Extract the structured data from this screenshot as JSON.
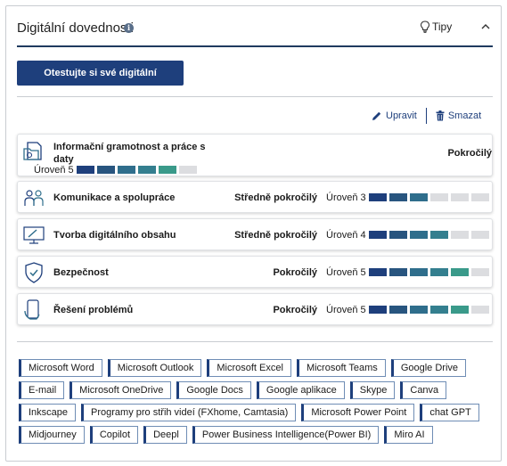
{
  "header": {
    "title": "Digitální dovednosti",
    "tips_label": "Tipy"
  },
  "test_button_label": "Otestujte si své digitální dovednosti",
  "actions": {
    "edit_label": "Upravit",
    "delete_label": "Smazat"
  },
  "bar_colors": [
    "#1e3f7c",
    "#28557f",
    "#2f6e8c",
    "#347f8f",
    "#3a9a8a",
    "#dcdde0"
  ],
  "skills": [
    {
      "name_line1": "Informační gramotnost a práce s",
      "name_line2": "daty",
      "level_text": "Pokročilý",
      "level_label": "Úroveň 5",
      "level": 5,
      "max": 6
    },
    {
      "name": "Komunikace a spolupráce",
      "level_text": "Středně pokročilý",
      "level_label": "Úroveň 3",
      "level": 3,
      "max": 6
    },
    {
      "name": "Tvorba digitálního obsahu",
      "level_text": "Středně pokročilý",
      "level_label": "Úroveň 4",
      "level": 4,
      "max": 6
    },
    {
      "name": "Bezpečnost",
      "level_text": "Pokročilý",
      "level_label": "Úroveň 5",
      "level": 5,
      "max": 6
    },
    {
      "name": "Řešení problémů",
      "level_text": "Pokročilý",
      "level_label": "Úroveň 5",
      "level": 5,
      "max": 6
    }
  ],
  "tags": [
    [
      "Microsoft Word",
      "Microsoft Outlook",
      "Microsoft Excel",
      "Microsoft Teams",
      "Google Drive"
    ],
    [
      "E-mail",
      "Microsoft OneDrive",
      "Google Docs",
      "Google aplikace",
      "Skype",
      "Canva"
    ],
    [
      "Inkscape",
      "Programy pro střih videí (FXhome, Camtasia)",
      "Microsoft Power Point",
      "chat GPT"
    ],
    [
      "Midjourney",
      "Copilot",
      "Deepl",
      "Power Business Intelligence(Power BI)",
      "Miro AI"
    ]
  ]
}
